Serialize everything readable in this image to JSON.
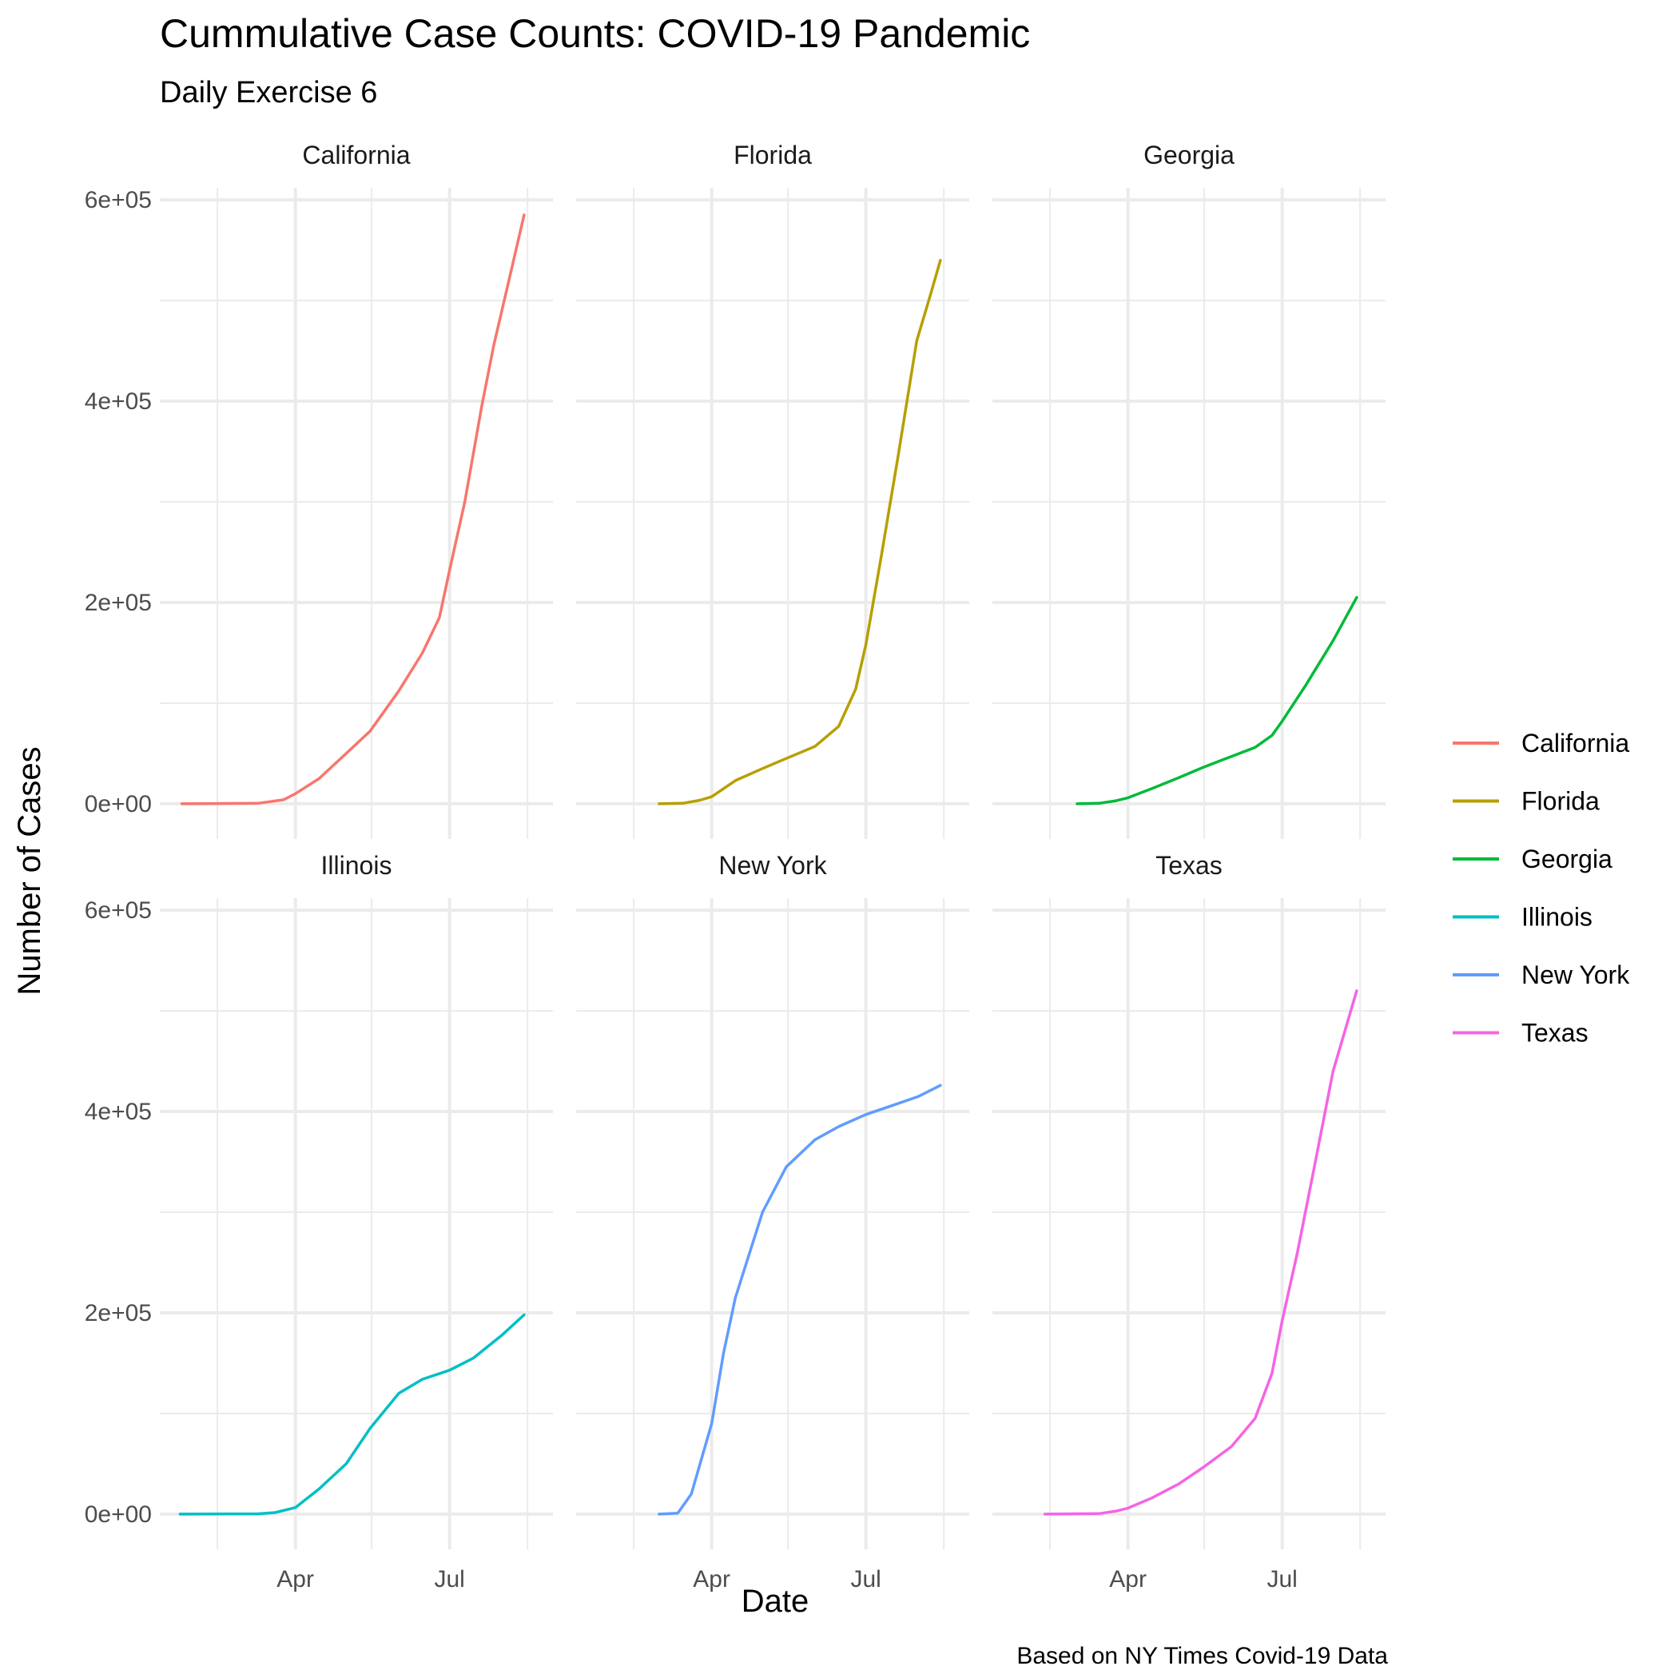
{
  "chart_data": {
    "type": "line",
    "layout": "facet_wrap",
    "title": "Cummulative Case Counts: COVID-19 Pandemic",
    "subtitle": "Daily Exercise 6",
    "xlabel": "Date",
    "ylabel": "Number of Cases",
    "caption": "Based on NY Times Covid-19 Data",
    "x_range": [
      "2020-01-12",
      "2020-08-31"
    ],
    "x_major_ticks": [
      {
        "date": "2020-04-01",
        "label": "Apr"
      },
      {
        "date": "2020-07-01",
        "label": "Jul"
      }
    ],
    "x_minor_ticks": [
      "2020-02-15",
      "2020-05-16",
      "2020-08-16"
    ],
    "ylim": [
      -35000,
      612000
    ],
    "y_major_ticks": [
      {
        "value": 0,
        "label": "0e+00"
      },
      {
        "value": 200000,
        "label": "2e+05"
      },
      {
        "value": 400000,
        "label": "4e+05"
      },
      {
        "value": 600000,
        "label": "6e+05"
      }
    ],
    "y_minor_ticks": [
      100000,
      300000,
      500000
    ],
    "grid": true,
    "legend": "right",
    "series": [
      {
        "name": "California",
        "color": "#F8766D",
        "data": [
          [
            "2020-01-25",
            0
          ],
          [
            "2020-03-10",
            500
          ],
          [
            "2020-03-25",
            4000
          ],
          [
            "2020-04-01",
            10000
          ],
          [
            "2020-04-15",
            25000
          ],
          [
            "2020-05-01",
            50000
          ],
          [
            "2020-05-15",
            72000
          ],
          [
            "2020-06-01",
            112000
          ],
          [
            "2020-06-15",
            150000
          ],
          [
            "2020-06-25",
            185000
          ],
          [
            "2020-07-01",
            232000
          ],
          [
            "2020-07-10",
            300000
          ],
          [
            "2020-07-20",
            395000
          ],
          [
            "2020-07-27",
            455000
          ],
          [
            "2020-08-05",
            520000
          ],
          [
            "2020-08-14",
            585000
          ]
        ]
      },
      {
        "name": "Florida",
        "color": "#B79F00",
        "data": [
          [
            "2020-03-01",
            0
          ],
          [
            "2020-03-15",
            500
          ],
          [
            "2020-03-25",
            3500
          ],
          [
            "2020-04-01",
            7000
          ],
          [
            "2020-04-15",
            23000
          ],
          [
            "2020-05-01",
            35000
          ],
          [
            "2020-05-15",
            45000
          ],
          [
            "2020-06-01",
            57000
          ],
          [
            "2020-06-15",
            77000
          ],
          [
            "2020-06-25",
            114000
          ],
          [
            "2020-07-01",
            158000
          ],
          [
            "2020-07-10",
            245000
          ],
          [
            "2020-07-20",
            345000
          ],
          [
            "2020-07-31",
            460000
          ],
          [
            "2020-08-08",
            505000
          ],
          [
            "2020-08-14",
            540000
          ]
        ]
      },
      {
        "name": "Georgia",
        "color": "#00BA38",
        "data": [
          [
            "2020-03-02",
            0
          ],
          [
            "2020-03-15",
            500
          ],
          [
            "2020-03-25",
            3000
          ],
          [
            "2020-04-01",
            6000
          ],
          [
            "2020-04-15",
            15000
          ],
          [
            "2020-05-01",
            26000
          ],
          [
            "2020-05-15",
            36000
          ],
          [
            "2020-06-01",
            47000
          ],
          [
            "2020-06-15",
            56000
          ],
          [
            "2020-06-25",
            68000
          ],
          [
            "2020-07-01",
            82000
          ],
          [
            "2020-07-15",
            118000
          ],
          [
            "2020-07-31",
            162000
          ],
          [
            "2020-08-14",
            205000
          ]
        ]
      },
      {
        "name": "Illinois",
        "color": "#00BFC4",
        "data": [
          [
            "2020-01-24",
            0
          ],
          [
            "2020-03-10",
            300
          ],
          [
            "2020-03-20",
            1500
          ],
          [
            "2020-04-01",
            6500
          ],
          [
            "2020-04-15",
            25000
          ],
          [
            "2020-05-01",
            50000
          ],
          [
            "2020-05-15",
            85000
          ],
          [
            "2020-06-01",
            120000
          ],
          [
            "2020-06-15",
            134000
          ],
          [
            "2020-07-01",
            143000
          ],
          [
            "2020-07-15",
            155000
          ],
          [
            "2020-08-01",
            178000
          ],
          [
            "2020-08-14",
            198000
          ]
        ]
      },
      {
        "name": "New York",
        "color": "#619CFF",
        "data": [
          [
            "2020-03-01",
            0
          ],
          [
            "2020-03-12",
            1000
          ],
          [
            "2020-03-20",
            20000
          ],
          [
            "2020-04-01",
            90000
          ],
          [
            "2020-04-08",
            160000
          ],
          [
            "2020-04-15",
            215000
          ],
          [
            "2020-05-01",
            300000
          ],
          [
            "2020-05-15",
            345000
          ],
          [
            "2020-06-01",
            372000
          ],
          [
            "2020-06-15",
            385000
          ],
          [
            "2020-07-01",
            397000
          ],
          [
            "2020-07-15",
            405000
          ],
          [
            "2020-08-01",
            415000
          ],
          [
            "2020-08-14",
            426000
          ]
        ]
      },
      {
        "name": "Texas",
        "color": "#F564E3",
        "data": [
          [
            "2020-02-12",
            0
          ],
          [
            "2020-03-15",
            500
          ],
          [
            "2020-03-25",
            3000
          ],
          [
            "2020-04-01",
            6000
          ],
          [
            "2020-04-15",
            16000
          ],
          [
            "2020-05-01",
            30000
          ],
          [
            "2020-05-15",
            46000
          ],
          [
            "2020-06-01",
            67000
          ],
          [
            "2020-06-15",
            95000
          ],
          [
            "2020-06-25",
            140000
          ],
          [
            "2020-07-01",
            192000
          ],
          [
            "2020-07-10",
            260000
          ],
          [
            "2020-07-20",
            345000
          ],
          [
            "2020-07-31",
            440000
          ],
          [
            "2020-08-14",
            520000
          ]
        ]
      }
    ]
  }
}
